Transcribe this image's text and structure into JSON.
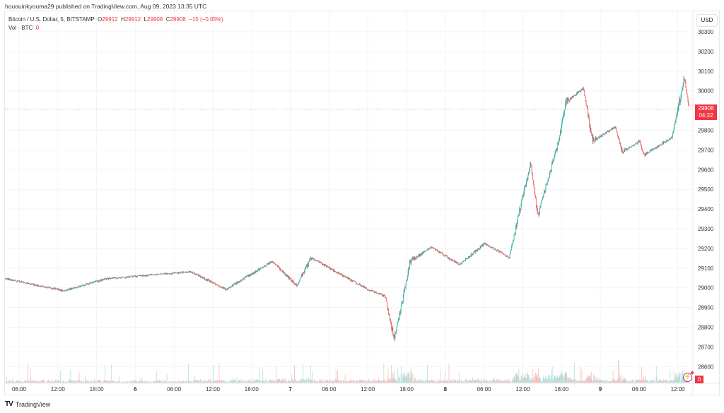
{
  "published": "hououinkyouma29 published on TradingView.com, Aug 09, 2023 13:35 UTC",
  "legend": {
    "symbol": "Bitcoin / U.S. Dollar, 5, BITSTAMP",
    "o_label": "O",
    "o": "29912",
    "h_label": "H",
    "h": "29912",
    "l_label": "L",
    "l": "29908",
    "c_label": "C",
    "c": "29908",
    "change": "−15 (−0.05%)",
    "vol_label": "Vol · BTC",
    "vol": "0"
  },
  "currency_button": "USD",
  "last_price": "29908",
  "countdown": "04:22",
  "volume_value": "0",
  "footer_brand": "TradingView",
  "footer_logo": "17",
  "colors": {
    "up": "#26a69a",
    "down": "#ef5350",
    "up_vol": "#a8dcd6",
    "down_vol": "#f7b5b3",
    "accent": "#f23645",
    "grid": "#f0f3fa"
  },
  "chart_data": {
    "type": "candlestick",
    "title": "Bitcoin / U.S. Dollar, 5, BITSTAMP",
    "interval_minutes": 5,
    "ylim": [
      28560,
      30340
    ],
    "y_ticks": [
      30300,
      30200,
      30100,
      30000,
      29800,
      29700,
      29600,
      29500,
      29400,
      29300,
      29200,
      29100,
      29000,
      28900,
      28800,
      28700,
      28600
    ],
    "x_ticks": [
      {
        "hour": 6,
        "label": "06:00"
      },
      {
        "hour": 12,
        "label": "12:00"
      },
      {
        "hour": 18,
        "label": "18:00"
      },
      {
        "hour": 24,
        "label": "6"
      },
      {
        "hour": 30,
        "label": "06:00"
      },
      {
        "hour": 36,
        "label": "12:00"
      },
      {
        "hour": 42,
        "label": "18:00"
      },
      {
        "hour": 48,
        "label": "7"
      },
      {
        "hour": 54,
        "label": "06:00"
      },
      {
        "hour": 60,
        "label": "12:00"
      },
      {
        "hour": 66,
        "label": "18:00"
      },
      {
        "hour": 72,
        "label": "8"
      },
      {
        "hour": 78,
        "label": "06:00"
      },
      {
        "hour": 84,
        "label": "12:00"
      },
      {
        "hour": 90,
        "label": "18:00"
      },
      {
        "hour": 96,
        "label": "9"
      },
      {
        "hour": 102,
        "label": "06:00"
      },
      {
        "hour": 108,
        "label": "12:00"
      }
    ],
    "x_range_hours": [
      3.9,
      110.5
    ],
    "price_path_hours_from_aug5": [
      [
        3.9,
        29046
      ],
      [
        12.9,
        28985
      ],
      [
        19.5,
        29046
      ],
      [
        32.6,
        29081
      ],
      [
        38.1,
        28992
      ],
      [
        45.2,
        29135
      ],
      [
        49.0,
        29010
      ],
      [
        51.2,
        29153
      ],
      [
        60.0,
        28992
      ],
      [
        62.7,
        28956
      ],
      [
        64.1,
        28740
      ],
      [
        66.6,
        29135
      ],
      [
        69.8,
        29207
      ],
      [
        74.2,
        29118
      ],
      [
        78.1,
        29225
      ],
      [
        81.9,
        29153
      ],
      [
        85.2,
        29637
      ],
      [
        86.3,
        29368
      ],
      [
        89.6,
        29745
      ],
      [
        90.6,
        29942
      ],
      [
        93.4,
        30013
      ],
      [
        94.8,
        29745
      ],
      [
        98.3,
        29817
      ],
      [
        99.4,
        29690
      ],
      [
        102.1,
        29745
      ],
      [
        102.7,
        29674
      ],
      [
        107.1,
        29763
      ],
      [
        109.0,
        30067
      ],
      [
        109.8,
        29908
      ]
    ],
    "last_price": 29908
  }
}
